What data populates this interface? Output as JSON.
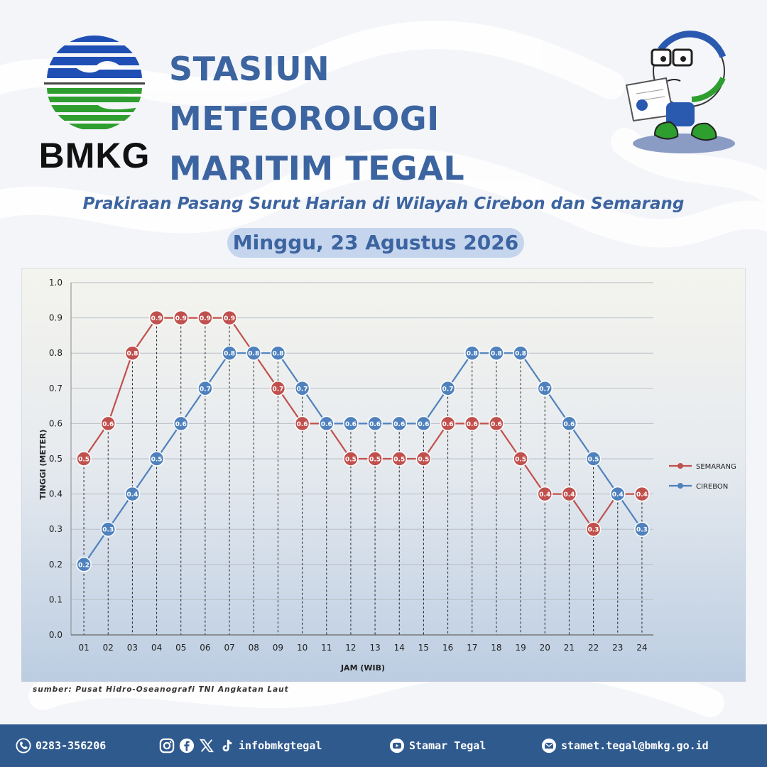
{
  "header": {
    "org_logo_text": "BMKG",
    "title_line1": "STASIUN METEOROLOGI",
    "title_line2": "MARITIM TEGAL",
    "subtitle": "Prakiraan Pasang Surut Harian di Wilayah Cirebon dan Semarang",
    "date": "Minggu, 23 Agustus 2026"
  },
  "source_note": "sumber: Pusat Hidro-Oseanografi TNI Angkatan Laut",
  "chart_data": {
    "type": "line",
    "title": "",
    "xlabel": "JAM (WIB)",
    "ylabel": "TINGGI (METER)",
    "ylim": [
      0.0,
      1.0
    ],
    "yticks": [
      "0.0",
      "0.1",
      "0.2",
      "0.3",
      "0.4",
      "0.5",
      "0.6",
      "0.7",
      "0.8",
      "0.9",
      "1.0"
    ],
    "grid": true,
    "legend_position": "right",
    "categories": [
      "01",
      "02",
      "03",
      "04",
      "05",
      "06",
      "07",
      "08",
      "09",
      "10",
      "11",
      "12",
      "13",
      "14",
      "15",
      "16",
      "17",
      "18",
      "19",
      "20",
      "21",
      "22",
      "23",
      "24"
    ],
    "series": [
      {
        "name": "SEMARANG",
        "color": "#c0504d",
        "values": [
          0.5,
          0.6,
          0.8,
          0.9,
          0.9,
          0.9,
          0.9,
          0.8,
          0.7,
          0.6,
          0.6,
          0.5,
          0.5,
          0.5,
          0.5,
          0.6,
          0.6,
          0.6,
          0.5,
          0.4,
          0.4,
          0.3,
          0.4,
          0.4
        ]
      },
      {
        "name": "CIREBON",
        "color": "#4f81bd",
        "values": [
          0.2,
          0.3,
          0.4,
          0.5,
          0.6,
          0.7,
          0.8,
          0.8,
          0.8,
          0.7,
          0.6,
          0.6,
          0.6,
          0.6,
          0.6,
          0.7,
          0.8,
          0.8,
          0.8,
          0.7,
          0.6,
          0.5,
          0.4,
          0.3
        ]
      }
    ]
  },
  "footer": {
    "phone": "0283-356206",
    "social_handle": "infobmkgtegal",
    "youtube": "Stamar Tegal",
    "email": "stamet.tegal@bmkg.go.id",
    "icons": [
      "phone-icon",
      "instagram-icon",
      "facebook-icon",
      "x-icon",
      "tiktok-icon",
      "youtube-icon",
      "email-icon"
    ]
  },
  "colors": {
    "title": "#3c64a0",
    "footer_bg": "#2f5a8e",
    "pill_bg": "#c5d5ee"
  }
}
